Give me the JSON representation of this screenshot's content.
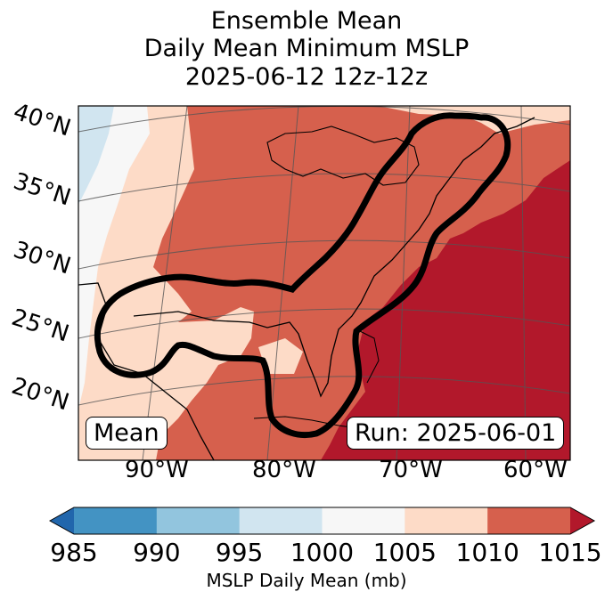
{
  "title": {
    "line1": "Ensemble Mean",
    "line2": "Daily Mean Minimum MSLP",
    "line3": "2025-06-12 12z-12z"
  },
  "map": {
    "lat_labels": [
      "40°N",
      "35°N",
      "30°N",
      "25°N",
      "20°N"
    ],
    "lon_labels": [
      "90°W",
      "80°W",
      "70°W",
      "60°W"
    ],
    "mean_label": "Mean",
    "run_label": "Run: 2025-06-01"
  },
  "colorbar": {
    "label": "MSLP Daily Mean (mb)",
    "ticks": [
      "985",
      "990",
      "995",
      "1000",
      "1005",
      "1010",
      "1015"
    ],
    "bins": [
      {
        "range": "<985",
        "color": "#2166ac"
      },
      {
        "range": "985-990",
        "color": "#4393c3"
      },
      {
        "range": "990-995",
        "color": "#92c5de"
      },
      {
        "range": "995-1000",
        "color": "#d1e5f0"
      },
      {
        "range": "1000-1005",
        "color": "#f7f7f7"
      },
      {
        "range": "1005-1010",
        "color": "#fddbc7"
      },
      {
        "range": "1010-1015",
        "color": "#d6604d"
      },
      {
        "range": ">1015",
        "color": "#b2182b"
      }
    ]
  }
}
